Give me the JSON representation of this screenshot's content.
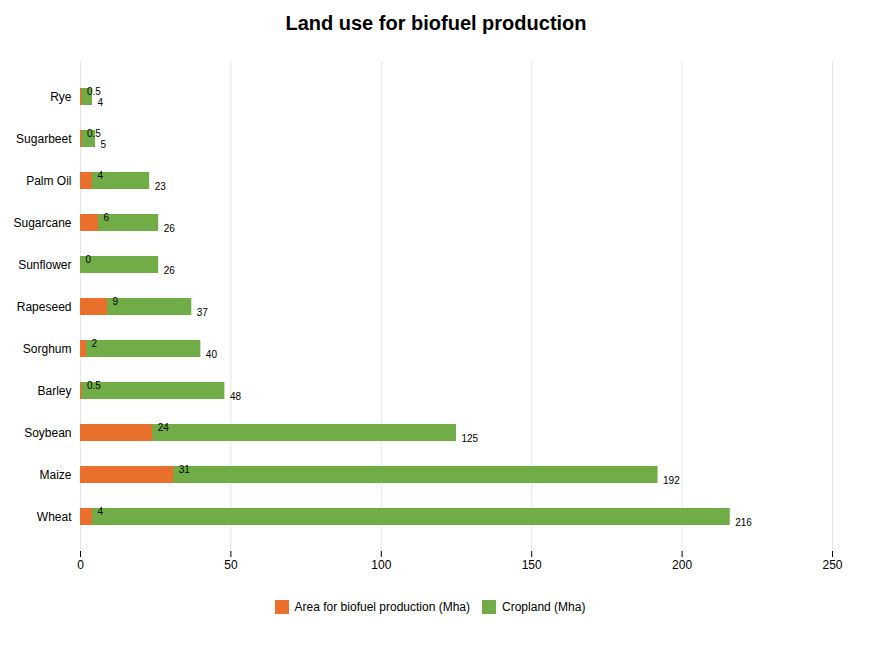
{
  "chart_data": {
    "type": "bar",
    "title": "Land use for biofuel production",
    "orientation": "horizontal",
    "categories": [
      "Wheat",
      "Maize",
      "Soybean",
      "Barley",
      "Sorghum",
      "Rapeseed",
      "Sunflower",
      "Sugarcane",
      "Palm Oil",
      "Sugarbeet",
      "Rye"
    ],
    "series": [
      {
        "name": "Area for biofuel production (Mha)",
        "color": "#E8702A",
        "values": [
          4,
          31,
          24,
          0.5,
          2,
          9,
          0,
          6,
          4,
          0.5,
          0.5
        ]
      },
      {
        "name": "Cropland (Mha)",
        "color": "#70AD47",
        "values": [
          216,
          192,
          125,
          48,
          40,
          37,
          26,
          26,
          23,
          5,
          4
        ]
      }
    ],
    "xlim": [
      0,
      250
    ],
    "xticks": [
      0,
      50,
      100,
      150,
      200,
      250
    ],
    "grid": true,
    "legend": "bottom",
    "data_labels": true
  }
}
